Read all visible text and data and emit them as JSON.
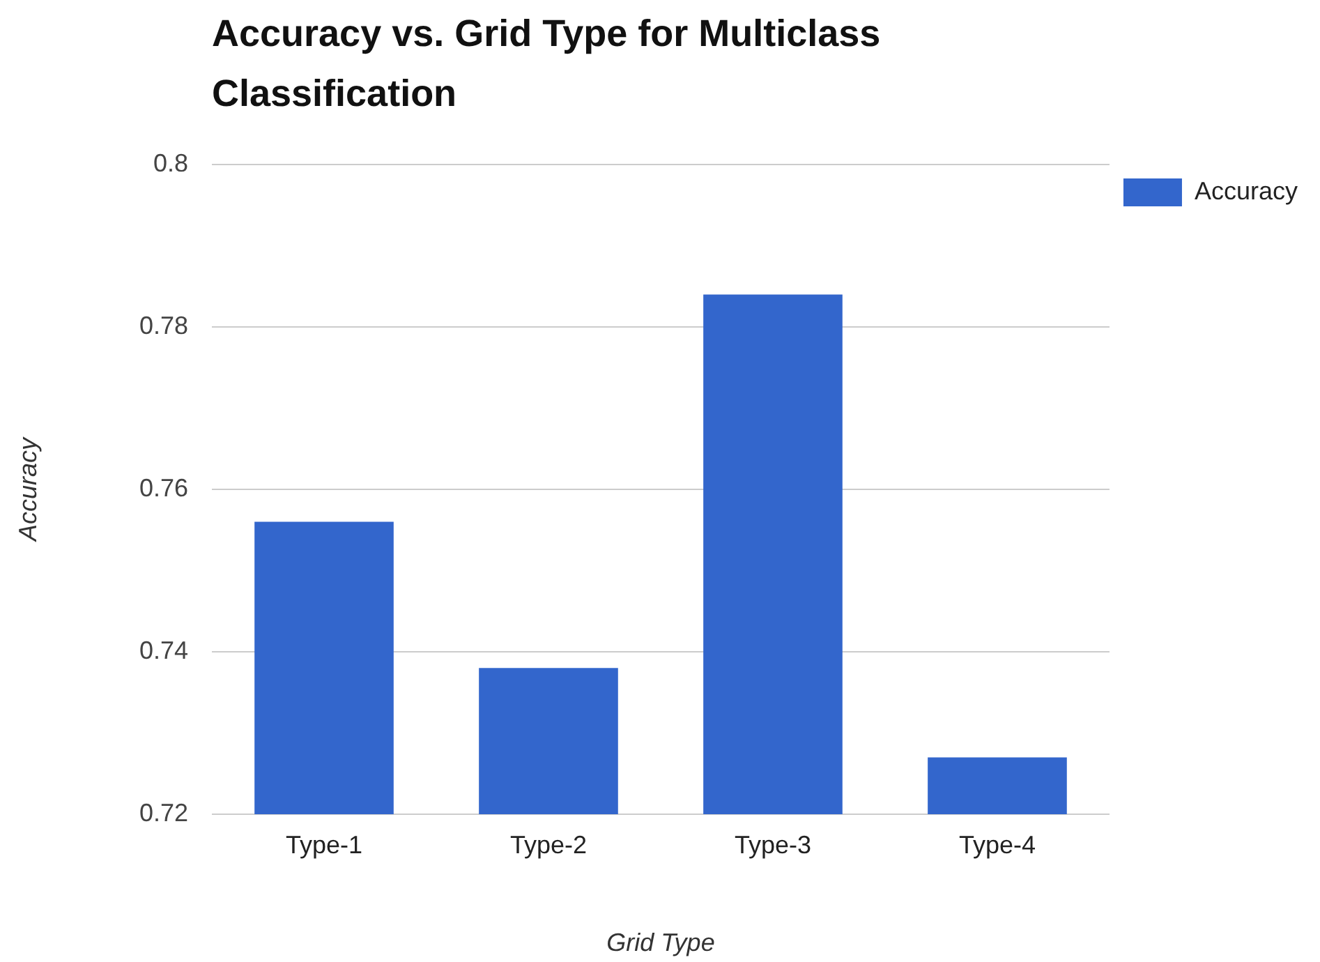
{
  "chart_data": {
    "type": "bar",
    "title": "Accuracy vs. Grid Type for Multiclass Classification",
    "xlabel": "Grid Type",
    "ylabel": "Accuracy",
    "categories": [
      "Type-1",
      "Type-2",
      "Type-3",
      "Type-4"
    ],
    "series": [
      {
        "name": "Accuracy",
        "color": "#3366cc",
        "values": [
          0.756,
          0.738,
          0.784,
          0.727
        ]
      }
    ],
    "ylim": [
      0.72,
      0.8
    ],
    "yticks": [
      0.72,
      0.74,
      0.76,
      0.78,
      0.8
    ],
    "grid": "y",
    "legend": "top right"
  }
}
